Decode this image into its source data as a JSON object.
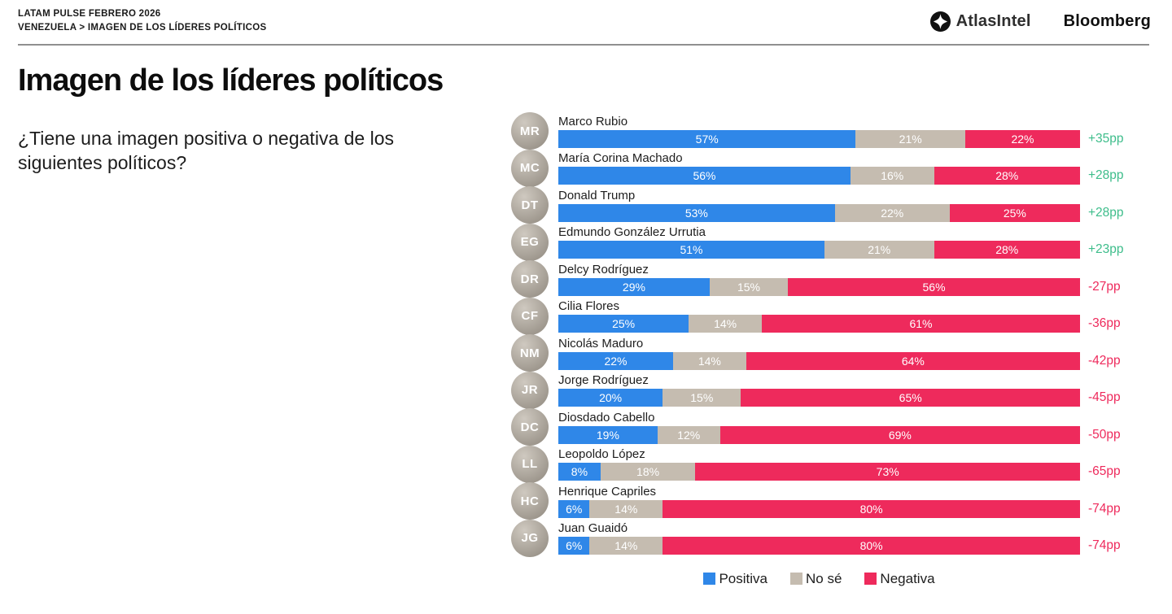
{
  "page": {
    "kicker_line1": "LATAM PULSE FEBRERO 2026",
    "kicker_line2": "VENEZUELA > IMAGEN DE LOS LÍDERES POLÍTICOS",
    "brand_atlasintel": "AtlasIntel",
    "brand_bloomberg": "Bloomberg",
    "title": "Imagen de los líderes políticos",
    "subtitle": "¿Tiene una imagen positiva o negativa de los siguientes políticos?"
  },
  "colors": {
    "positive": "#2F87E8",
    "neutral": "#C5BCB0",
    "negative": "#EE2A5C",
    "net_positive": "#3EBD8B",
    "net_negative": "#EE2A5C"
  },
  "legend": [
    {
      "label": "Positiva",
      "color": "#2F87E8"
    },
    {
      "label": "No sé",
      "color": "#C5BCB0"
    },
    {
      "label": "Negativa",
      "color": "#EE2A5C"
    }
  ],
  "chart_data": {
    "type": "bar",
    "orientation": "horizontal_stacked",
    "unit": "%",
    "title": "Imagen de los líderes políticos",
    "question": "¿Tiene una imagen positiva o negativa de los siguientes políticos?",
    "value_labels": "inside-center",
    "legend_position": "bottom-center",
    "categories": [
      "Marco Rubio",
      "María Corina Machado",
      "Donald Trump",
      "Edmundo González Urrutia",
      "Delcy Rodríguez",
      "Cilia Flores",
      "Nicolás Maduro",
      "Jorge Rodríguez",
      "Diosdado Cabello",
      "Leopoldo López",
      "Henrique Capriles",
      "Juan Guaidó"
    ],
    "avatar_initials": [
      "MR",
      "MC",
      "DT",
      "EG",
      "DR",
      "CF",
      "NM",
      "JR",
      "DC",
      "LL",
      "HC",
      "JG"
    ],
    "series": [
      {
        "name": "Positiva",
        "color": "#2F87E8",
        "values": [
          57,
          56,
          53,
          51,
          29,
          25,
          22,
          20,
          19,
          8,
          6,
          6
        ]
      },
      {
        "name": "No sé",
        "color": "#C5BCB0",
        "values": [
          21,
          16,
          22,
          21,
          15,
          14,
          14,
          15,
          12,
          18,
          14,
          14
        ]
      },
      {
        "name": "Negativa",
        "color": "#EE2A5C",
        "values": [
          22,
          28,
          25,
          28,
          56,
          61,
          64,
          65,
          69,
          73,
          80,
          80
        ]
      }
    ],
    "net_labels": [
      "+35pp",
      "+28pp",
      "+28pp",
      "+23pp",
      "-27pp",
      "-36pp",
      "-42pp",
      "-45pp",
      "-50pp",
      "-65pp",
      "-74pp",
      "-74pp"
    ]
  }
}
